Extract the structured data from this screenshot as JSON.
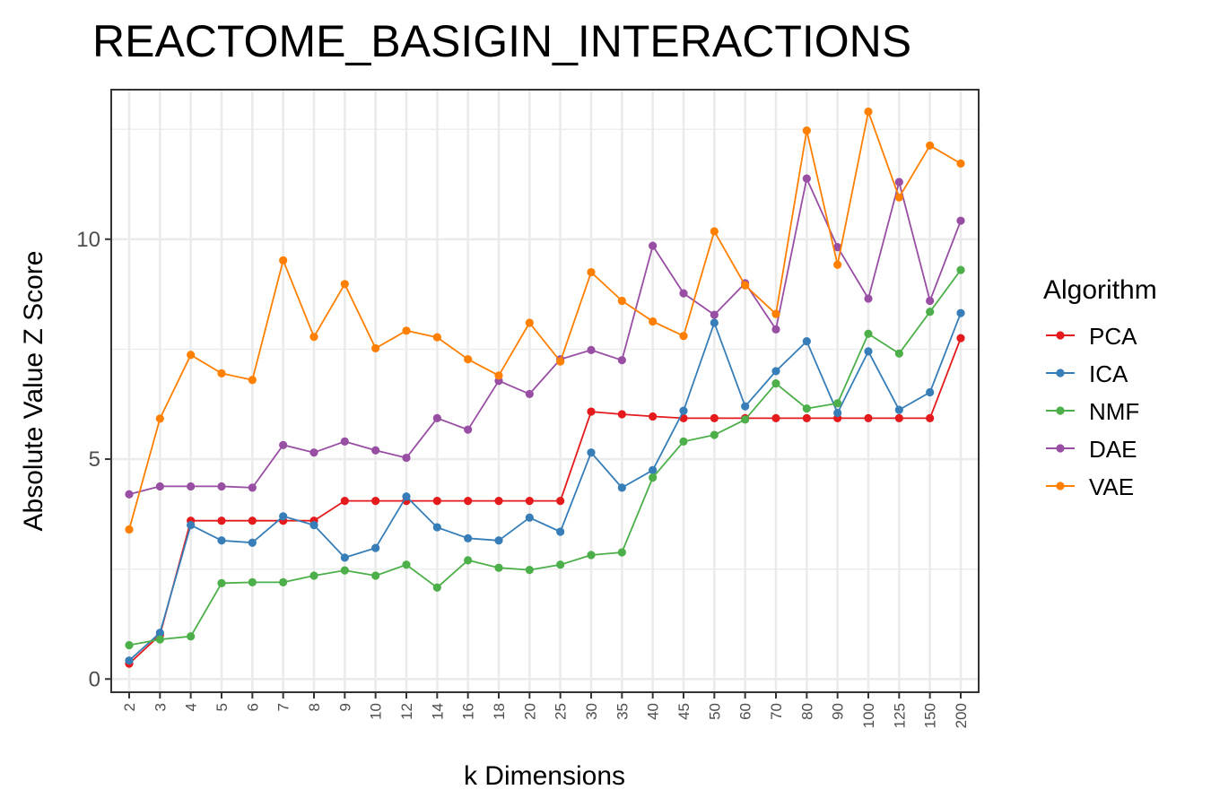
{
  "chart_data": {
    "type": "line",
    "title": "REACTOME_BASIGIN_INTERACTIONS",
    "xlabel": "k Dimensions",
    "ylabel": "Absolute Value Z Score",
    "categories": [
      "2",
      "3",
      "4",
      "5",
      "6",
      "7",
      "8",
      "9",
      "10",
      "12",
      "14",
      "16",
      "18",
      "20",
      "25",
      "30",
      "35",
      "40",
      "45",
      "50",
      "60",
      "70",
      "80",
      "90",
      "100",
      "125",
      "150",
      "200"
    ],
    "ylim": [
      -0.3,
      13.4
    ],
    "yticks": [
      0,
      5,
      10
    ],
    "ytick_labels": [
      "0",
      "5",
      "10"
    ],
    "grid": true,
    "legend": {
      "title": "Algorithm",
      "position": "right"
    },
    "series": [
      {
        "name": "PCA",
        "color": "#e41a1c",
        "values": [
          0.35,
          1.0,
          3.6,
          3.6,
          3.6,
          3.6,
          3.6,
          4.05,
          4.05,
          4.05,
          4.05,
          4.05,
          4.05,
          4.05,
          4.05,
          6.08,
          6.02,
          5.97,
          5.93,
          5.93,
          5.93,
          5.93,
          5.93,
          5.93,
          5.93,
          5.93,
          5.93,
          7.75
        ]
      },
      {
        "name": "ICA",
        "color": "#377eb8",
        "values": [
          0.42,
          1.05,
          3.5,
          3.15,
          3.1,
          3.7,
          3.5,
          2.76,
          2.98,
          4.15,
          3.45,
          3.2,
          3.15,
          3.67,
          3.35,
          5.15,
          4.35,
          4.75,
          6.1,
          8.1,
          6.2,
          7.0,
          7.68,
          6.05,
          7.45,
          6.12,
          6.52,
          8.32
        ]
      },
      {
        "name": "NMF",
        "color": "#4daf4a",
        "values": [
          0.77,
          0.9,
          0.97,
          2.18,
          2.2,
          2.2,
          2.35,
          2.47,
          2.35,
          2.6,
          2.08,
          2.7,
          2.53,
          2.48,
          2.6,
          2.82,
          2.88,
          4.58,
          5.4,
          5.55,
          5.9,
          6.72,
          6.15,
          6.27,
          7.85,
          7.4,
          8.35,
          9.3
        ]
      },
      {
        "name": "DAE",
        "color": "#984ea3",
        "values": [
          4.2,
          4.38,
          4.38,
          4.38,
          4.35,
          5.32,
          5.15,
          5.4,
          5.2,
          5.03,
          5.93,
          5.67,
          6.78,
          6.48,
          7.27,
          7.48,
          7.25,
          9.85,
          8.77,
          8.28,
          9.0,
          7.95,
          11.38,
          9.82,
          8.65,
          11.3,
          8.6,
          10.42
        ]
      },
      {
        "name": "VAE",
        "color": "#ff7f00",
        "values": [
          3.4,
          5.92,
          7.37,
          6.95,
          6.8,
          9.52,
          7.78,
          8.98,
          7.52,
          7.92,
          7.77,
          7.27,
          6.9,
          8.1,
          7.22,
          9.25,
          8.6,
          8.13,
          7.8,
          10.18,
          8.95,
          8.3,
          12.47,
          9.42,
          12.9,
          10.95,
          12.13,
          11.72
        ]
      }
    ]
  }
}
